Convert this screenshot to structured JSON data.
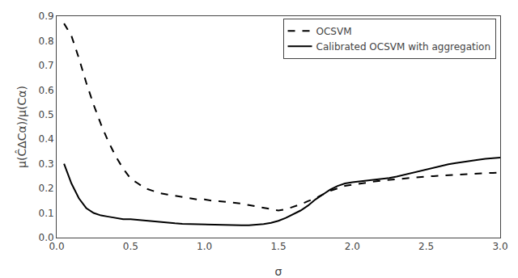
{
  "chart_data": {
    "type": "line",
    "xlabel": "σ",
    "ylabel": "μ(ĈΔCα)/μ(Cα)",
    "xlim": [
      0.0,
      3.0
    ],
    "ylim": [
      0.0,
      0.9
    ],
    "xticks": [
      {
        "value": 0.0,
        "label": "0.0"
      },
      0.5,
      {
        "value": 1.0,
        "label": "1.0"
      },
      1.5,
      {
        "value": 2.0,
        "label": "2.0"
      },
      2.5,
      {
        "value": 3.0,
        "label": "3.0"
      }
    ],
    "yticks": [
      {
        "value": 0.0,
        "label": "0.0"
      },
      0.1,
      0.2,
      0.3,
      0.4,
      0.5,
      0.6,
      0.7,
      0.8,
      0.9
    ],
    "x": [
      0.05,
      0.1,
      0.15,
      0.2,
      0.25,
      0.3,
      0.35,
      0.4,
      0.45,
      0.5,
      0.55,
      0.6,
      0.65,
      0.7,
      0.75,
      0.8,
      0.85,
      0.9,
      0.95,
      1.0,
      1.05,
      1.1,
      1.15,
      1.2,
      1.25,
      1.3,
      1.35,
      1.4,
      1.45,
      1.5,
      1.55,
      1.6,
      1.65,
      1.7,
      1.75,
      1.8,
      1.85,
      1.9,
      1.95,
      2.0,
      2.05,
      2.1,
      2.15,
      2.2,
      2.25,
      2.3,
      2.35,
      2.4,
      2.45,
      2.5,
      2.55,
      2.6,
      2.65,
      2.7,
      2.75,
      2.8,
      2.85,
      2.9,
      2.95,
      3.0
    ],
    "series": [
      {
        "name": "OCSVM",
        "color": "black",
        "line_style": "dashed",
        "values": [
          0.87,
          0.82,
          0.73,
          0.63,
          0.54,
          0.46,
          0.39,
          0.33,
          0.28,
          0.24,
          0.22,
          0.2,
          0.19,
          0.18,
          0.175,
          0.17,
          0.165,
          0.16,
          0.155,
          0.155,
          0.15,
          0.148,
          0.145,
          0.143,
          0.138,
          0.132,
          0.126,
          0.12,
          0.115,
          0.11,
          0.115,
          0.125,
          0.135,
          0.148,
          0.16,
          0.175,
          0.19,
          0.2,
          0.21,
          0.215,
          0.22,
          0.225,
          0.228,
          0.232,
          0.235,
          0.238,
          0.24,
          0.243,
          0.246,
          0.248,
          0.25,
          0.252,
          0.254,
          0.256,
          0.258,
          0.26,
          0.261,
          0.262,
          0.263,
          0.265
        ]
      },
      {
        "name": "Calibrated OCSVM with aggregation",
        "color": "black",
        "line_style": "solid",
        "values": [
          0.3,
          0.22,
          0.16,
          0.12,
          0.1,
          0.09,
          0.085,
          0.08,
          0.075,
          0.075,
          0.072,
          0.068,
          0.065,
          0.063,
          0.06,
          0.058,
          0.056,
          0.055,
          0.054,
          0.053,
          0.052,
          0.051,
          0.051,
          0.05,
          0.05,
          0.05,
          0.052,
          0.055,
          0.06,
          0.068,
          0.08,
          0.095,
          0.11,
          0.13,
          0.155,
          0.175,
          0.195,
          0.21,
          0.22,
          0.225,
          0.228,
          0.232,
          0.235,
          0.238,
          0.242,
          0.248,
          0.255,
          0.262,
          0.27,
          0.278,
          0.285,
          0.292,
          0.298,
          0.303,
          0.308,
          0.312,
          0.316,
          0.32,
          0.322,
          0.325
        ]
      }
    ],
    "legend": "upper right",
    "grid": false
  }
}
